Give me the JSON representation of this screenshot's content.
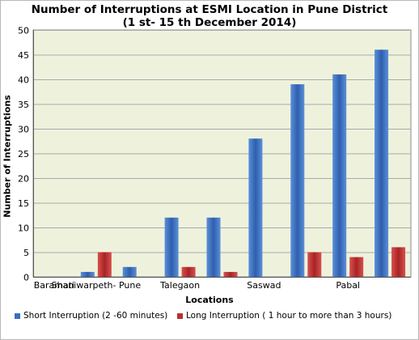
{
  "chart_data": {
    "type": "bar",
    "title_line1": "Number of Interruptions at ESMI Location in Pune District",
    "title_line2": "(1 st- 15 th December 2014)",
    "xlabel": "Locations",
    "ylabel": "Number of Interruptions",
    "ylim": [
      0,
      50
    ],
    "yticks": [
      0,
      5,
      10,
      15,
      20,
      25,
      30,
      35,
      40,
      45,
      50
    ],
    "grid": true,
    "legend_position": "bottom",
    "categories": [
      "Baramati",
      "Shaniwarpeth- Pune",
      "",
      "Talegaon",
      "",
      "Saswad",
      "",
      "Pabal",
      ""
    ],
    "series": [
      {
        "name": "Short Interruption (2 -60 minutes)",
        "color": "#3b6fbf",
        "values": [
          0,
          1,
          2,
          12,
          12,
          28,
          39,
          41,
          46
        ]
      },
      {
        "name": "Long Interruption ( 1 hour to more than 3 hours)",
        "color": "#b83030",
        "values": [
          0,
          5,
          0,
          2,
          1,
          0,
          5,
          4,
          6
        ]
      }
    ],
    "plot_background": "#eef2dd"
  }
}
